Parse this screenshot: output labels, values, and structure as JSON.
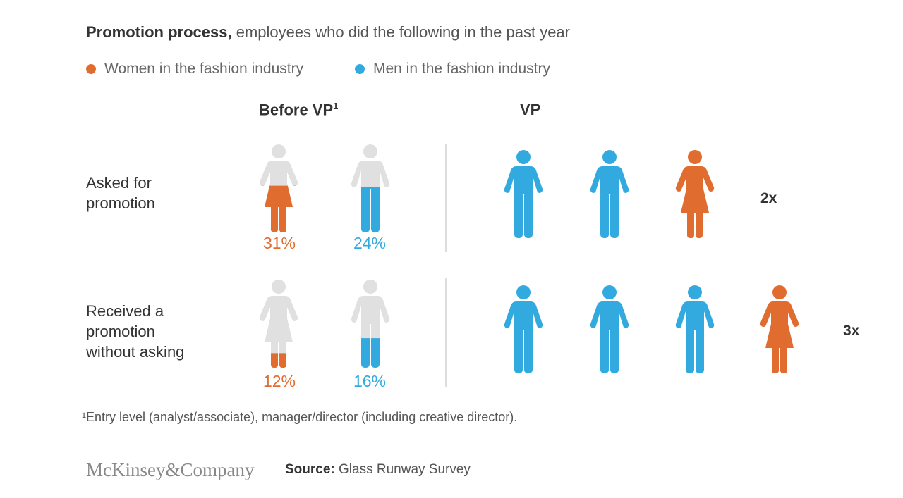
{
  "title": {
    "bold": "Promotion process,",
    "rest": " employees who did the following in the past year"
  },
  "legend": [
    {
      "label": "Women in the fashion industry",
      "color": "#E06C2F"
    },
    {
      "label": "Men in the fashion industry",
      "color": "#33AADF"
    }
  ],
  "colors": {
    "women": "#E06C2F",
    "men": "#33AADF",
    "empty": "#E0E0E0"
  },
  "columns": {
    "before_vp": "Before VP",
    "before_vp_sup": "1",
    "vp": "VP"
  },
  "chart_data": {
    "type": "pictogram",
    "title": "Promotion process, employees who did the following in the past year",
    "legend_placement": "top-left",
    "rows": [
      {
        "label": "Asked for promotion",
        "label_lines": [
          "Asked for",
          "promotion"
        ],
        "before_vp": {
          "women": 31,
          "men": 24,
          "women_label": "31%",
          "men_label": "24%"
        },
        "vp": {
          "figures": [
            "man",
            "man",
            "woman"
          ],
          "ratio_label": "2x"
        }
      },
      {
        "label": "Received a promotion without asking",
        "label_lines": [
          "Received a",
          "promotion",
          "without asking"
        ],
        "before_vp": {
          "women": 12,
          "men": 16,
          "women_label": "12%",
          "men_label": "16%"
        },
        "vp": {
          "figures": [
            "man",
            "man",
            "man",
            "woman"
          ],
          "ratio_label": "3x"
        }
      }
    ]
  },
  "footnote": "¹Entry level (analyst/associate), manager/director (including creative director).",
  "footer": {
    "logo": "McKinsey&Company",
    "source_label": "Source:",
    "source_text": " Glass Runway Survey"
  }
}
